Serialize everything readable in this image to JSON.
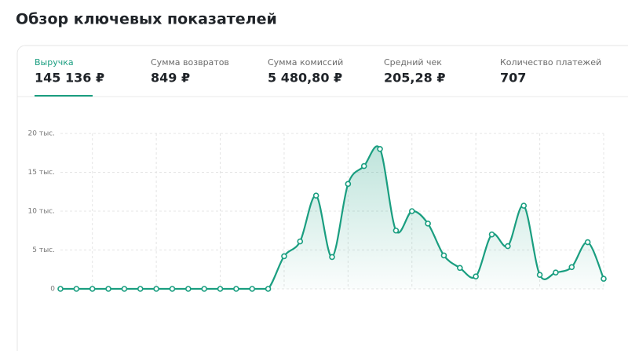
{
  "header": {
    "title": "Обзор ключевых показателей"
  },
  "tabs": [
    {
      "label": "Выручка",
      "value": "145 136 ₽"
    },
    {
      "label": "Сумма возвратов",
      "value": "849 ₽"
    },
    {
      "label": "Сумма комиссий",
      "value": "5 480,80 ₽"
    },
    {
      "label": "Средний чек",
      "value": "205,28 ₽"
    },
    {
      "label": "Количество платежей",
      "value": "707"
    }
  ],
  "chart_data": {
    "type": "area",
    "color": "#1a9e80",
    "grid": true,
    "values": [
      0,
      0,
      0,
      0,
      0,
      0,
      0,
      0,
      0,
      0,
      0,
      0,
      0,
      0,
      4200,
      6100,
      12000,
      4100,
      13500,
      15800,
      18000,
      7500,
      10000,
      8400,
      4300,
      2700,
      1600,
      7000,
      5500,
      10700,
      1800,
      2100,
      2800,
      6000,
      1300
    ],
    "ylim": [
      0,
      20000
    ],
    "yticks": [
      0,
      {
        "value": 5000,
        "label": "5 тыс."
      },
      {
        "value": 10000,
        "label": "10 тыс."
      },
      {
        "value": 15000,
        "label": "15 тыс."
      },
      {
        "value": 20000,
        "label": "20 тыс."
      }
    ]
  }
}
